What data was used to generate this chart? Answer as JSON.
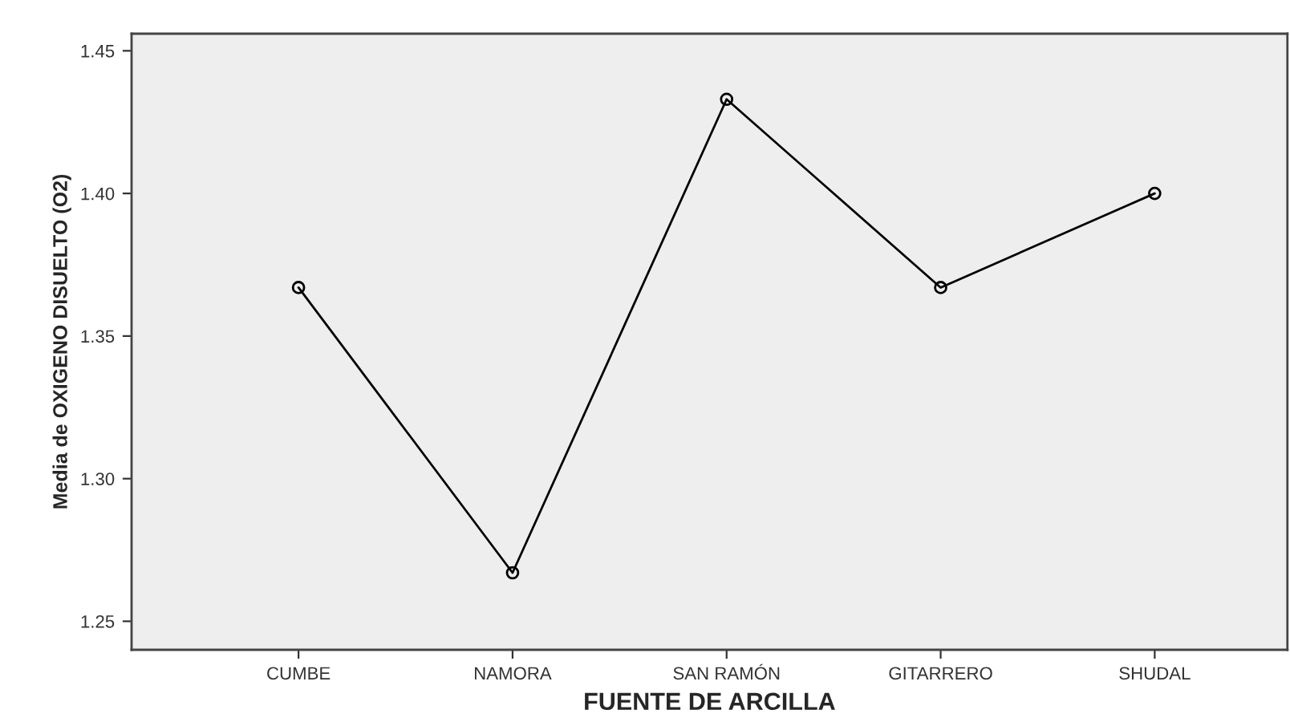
{
  "chart_data": {
    "type": "line",
    "xlabel": "FUENTE DE ARCILLA",
    "ylabel": "Media de OXIGENO DISUELTO (O2)",
    "categories": [
      "CUMBE",
      "NAMORA",
      "SAN RAMÓN",
      "GITARRERO",
      "SHUDAL"
    ],
    "values": [
      1.367,
      1.267,
      1.433,
      1.367,
      1.4
    ],
    "color": "#000000",
    "marker": "circle",
    "line_style": "solid",
    "ylim": [
      1.24,
      1.456
    ],
    "yticks": [
      {
        "value": 1.25,
        "label": "1.25"
      },
      {
        "value": 1.3,
        "label": "1.30"
      },
      {
        "value": 1.35,
        "label": "1.35"
      },
      {
        "value": 1.4,
        "label": "1.40"
      },
      {
        "value": 1.45,
        "label": "1.45"
      }
    ],
    "grid": false
  }
}
